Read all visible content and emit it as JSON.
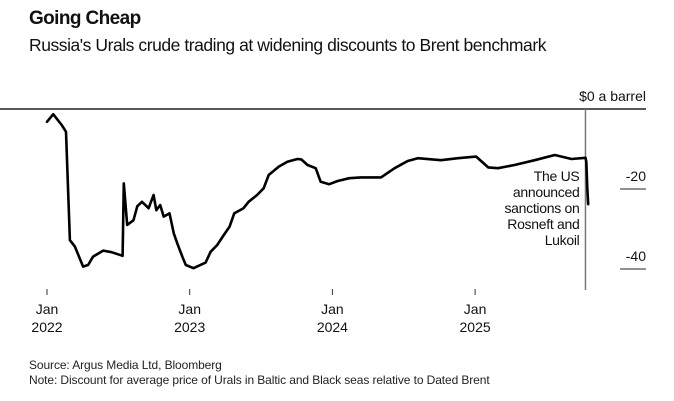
{
  "title": "Going Cheap",
  "subtitle": "Russia's Urals crude trading at widening discounts to Brent benchmark",
  "source": "Source: Argus Media Ltd, Bloomberg",
  "note": "Note: Discount for average price of Urals in Baltic and Black seas relative to Dated Brent",
  "colors": {
    "line": "#000000",
    "annotation_line": "#777777",
    "axis": "#222222"
  },
  "chart_data": {
    "type": "line",
    "title": "Going Cheap",
    "ylabel": "",
    "y_unit_label": "$0 a barrel",
    "ylim": [
      -45,
      0
    ],
    "y_ticks": [
      {
        "value": 0,
        "label": "$0 a barrel"
      },
      {
        "value": -20,
        "label": "-20"
      },
      {
        "value": -40,
        "label": "-40"
      }
    ],
    "x_ticks": [
      {
        "date": "2022-01-01",
        "month": "Jan",
        "year": "2022"
      },
      {
        "date": "2023-01-01",
        "month": "Jan",
        "year": "2023"
      },
      {
        "date": "2024-01-01",
        "month": "Jan",
        "year": "2024"
      },
      {
        "date": "2025-01-01",
        "month": "Jan",
        "year": "2025"
      }
    ],
    "grid": false,
    "annotation": {
      "date": "2025-10-22",
      "lines": [
        "The US",
        "announced",
        "sanctions on",
        "Rosneft and",
        "Lukoil"
      ]
    },
    "series": [
      {
        "x": [
          "2022-01-01",
          "2022-01-17",
          "2022-02-08",
          "2022-02-19",
          "2022-03-01",
          "2022-03-14",
          "2022-04-04",
          "2022-04-17",
          "2022-04-30",
          "2022-05-26",
          "2022-06-17",
          "2022-07-15",
          "2022-07-18",
          "2022-07-27",
          "2022-08-12",
          "2022-08-22",
          "2022-09-03",
          "2022-09-20",
          "2022-10-03",
          "2022-10-10",
          "2022-10-20",
          "2022-10-29",
          "2022-11-13",
          "2022-11-24",
          "2022-12-03",
          "2022-12-16",
          "2022-12-25",
          "2023-01-14",
          "2023-02-14",
          "2023-02-27",
          "2023-03-16",
          "2023-04-02",
          "2023-04-17",
          "2023-04-29",
          "2023-05-23",
          "2023-06-05",
          "2023-06-27",
          "2023-07-14",
          "2023-07-27",
          "2023-08-22",
          "2023-09-13",
          "2023-10-09",
          "2023-10-19",
          "2023-11-04",
          "2023-11-25",
          "2023-12-08",
          "2023-12-30",
          "2024-01-21",
          "2024-02-20",
          "2024-03-21",
          "2024-05-12",
          "2024-06-16",
          "2024-07-20",
          "2024-08-15",
          "2024-10-14",
          "2024-11-27",
          "2025-01-13",
          "2025-02-13",
          "2025-03-10",
          "2025-04-22",
          "2025-06-13",
          "2025-08-04",
          "2025-09-16",
          "2025-10-22",
          "2025-10-24",
          "2025-10-27",
          "2025-10-29"
        ],
        "y": [
          -3.2,
          -1.3,
          -4.0,
          -5.7,
          -32.8,
          -34.4,
          -39.4,
          -39.0,
          -36.9,
          -35.4,
          -35.8,
          -36.7,
          -18.6,
          -29.0,
          -27.8,
          -24.3,
          -23.2,
          -24.8,
          -21.5,
          -25.3,
          -24.0,
          -26.9,
          -26.1,
          -31.1,
          -33.6,
          -36.9,
          -39.0,
          -39.8,
          -38.4,
          -35.7,
          -34.0,
          -31.5,
          -29.4,
          -26.1,
          -24.8,
          -23.2,
          -21.5,
          -19.8,
          -16.5,
          -14.4,
          -13.2,
          -12.5,
          -12.6,
          -14.0,
          -14.8,
          -18.2,
          -18.8,
          -18.0,
          -17.3,
          -17.1,
          -17.1,
          -14.8,
          -13.0,
          -12.3,
          -12.8,
          -12.3,
          -11.9,
          -14.6,
          -14.8,
          -14.0,
          -12.8,
          -11.5,
          -12.5,
          -12.2,
          -13.2,
          -20.3,
          -23.8
        ]
      }
    ]
  }
}
